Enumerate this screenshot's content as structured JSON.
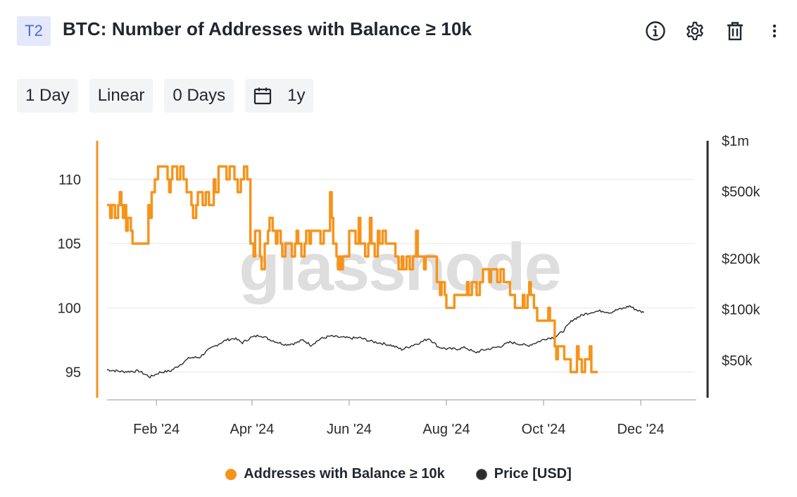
{
  "header": {
    "tag": "T2",
    "title": "BTC: Number of Addresses with Balance ≥ 10k",
    "icons": [
      "info-icon",
      "gear-icon",
      "trash-icon",
      "more-vertical-icon"
    ]
  },
  "toolbar": {
    "resolution": "1 Day",
    "scale": "Linear",
    "moving_average": "0 Days",
    "range": "1y",
    "range_icon": "calendar-icon"
  },
  "legend": [
    {
      "label": "Addresses with Balance ≥ 10k",
      "color": "#f7931a"
    },
    {
      "label": "Price [USD]",
      "color": "#2b2b2b"
    }
  ],
  "chart_data": {
    "type": "line",
    "watermark": "glassnode",
    "x_ticks": [
      {
        "label": "Feb '24",
        "day": 31
      },
      {
        "label": "Apr '24",
        "day": 91
      },
      {
        "label": "Jun '24",
        "day": 152
      },
      {
        "label": "Aug '24",
        "day": 213
      },
      {
        "label": "Oct '24",
        "day": 274
      },
      {
        "label": "Dec '24",
        "day": 335
      }
    ],
    "x_range_days": [
      0,
      369
    ],
    "left_axis": {
      "ticks": [
        "95",
        "100",
        "105",
        "110"
      ],
      "values": [
        95,
        100,
        105,
        110
      ],
      "ylim": [
        93,
        113
      ],
      "color": "#f7931a"
    },
    "right_axis": {
      "ticks": [
        "$50k",
        "$100k",
        "$200k",
        "$500k",
        "$1m"
      ],
      "values": [
        50000,
        100000,
        200000,
        500000,
        1000000
      ],
      "ylim": [
        30000,
        1000000
      ],
      "scale": "log",
      "color": "#2b2b2b"
    },
    "series": [
      {
        "name": "Addresses with Balance ≥ 10k",
        "axis": "left",
        "color": "#f7931a",
        "step": true,
        "points": [
          [
            0,
            108
          ],
          [
            2,
            107
          ],
          [
            3,
            108
          ],
          [
            5,
            107
          ],
          [
            7,
            108
          ],
          [
            8,
            109
          ],
          [
            9,
            108
          ],
          [
            10,
            107
          ],
          [
            11,
            108
          ],
          [
            12,
            106
          ],
          [
            13,
            107
          ],
          [
            14,
            107
          ],
          [
            15,
            106
          ],
          [
            16,
            105
          ],
          [
            25,
            105
          ],
          [
            26,
            108
          ],
          [
            27,
            107
          ],
          [
            28,
            109
          ],
          [
            30,
            110
          ],
          [
            31,
            110
          ],
          [
            32,
            111
          ],
          [
            38,
            110
          ],
          [
            39,
            109
          ],
          [
            40,
            110
          ],
          [
            41,
            111
          ],
          [
            44,
            110
          ],
          [
            46,
            111
          ],
          [
            48,
            110
          ],
          [
            50,
            109
          ],
          [
            53,
            108
          ],
          [
            54,
            107
          ],
          [
            56,
            108
          ],
          [
            57,
            109
          ],
          [
            60,
            108
          ],
          [
            62,
            109
          ],
          [
            64,
            108
          ],
          [
            67,
            110
          ],
          [
            68,
            109
          ],
          [
            70,
            111
          ],
          [
            75,
            110
          ],
          [
            77,
            111
          ],
          [
            80,
            110
          ],
          [
            82,
            109
          ],
          [
            84,
            110
          ],
          [
            86,
            111
          ],
          [
            88,
            110
          ],
          [
            90,
            105
          ],
          [
            92,
            104
          ],
          [
            93,
            106
          ],
          [
            95,
            106
          ],
          [
            96,
            104
          ],
          [
            97,
            103
          ],
          [
            99,
            105
          ],
          [
            101,
            106
          ],
          [
            102,
            107
          ],
          [
            104,
            106
          ],
          [
            106,
            105
          ],
          [
            107,
            106
          ],
          [
            109,
            105
          ],
          [
            110,
            104
          ],
          [
            112,
            105
          ],
          [
            115,
            105
          ],
          [
            116,
            104
          ],
          [
            118,
            105
          ],
          [
            119,
            106
          ],
          [
            120,
            105
          ],
          [
            122,
            104
          ],
          [
            124,
            105
          ],
          [
            125,
            106
          ],
          [
            127,
            105
          ],
          [
            128,
            106
          ],
          [
            132,
            106
          ],
          [
            134,
            105
          ],
          [
            136,
            106
          ],
          [
            138,
            106
          ],
          [
            140,
            109
          ],
          [
            141,
            107
          ],
          [
            142,
            105
          ],
          [
            144,
            104
          ],
          [
            145,
            103
          ],
          [
            146,
            104
          ],
          [
            147,
            103
          ],
          [
            148,
            104
          ],
          [
            150,
            104
          ],
          [
            152,
            106
          ],
          [
            155,
            106
          ],
          [
            156,
            105
          ],
          [
            158,
            107
          ],
          [
            159,
            105
          ],
          [
            161,
            105
          ],
          [
            162,
            104
          ],
          [
            164,
            105
          ],
          [
            165,
            107
          ],
          [
            166,
            105
          ],
          [
            168,
            104
          ],
          [
            170,
            106
          ],
          [
            171,
            105
          ],
          [
            173,
            106
          ],
          [
            175,
            105
          ],
          [
            180,
            105
          ],
          [
            181,
            104
          ],
          [
            183,
            103
          ],
          [
            185,
            104
          ],
          [
            186,
            103
          ],
          [
            188,
            104
          ],
          [
            190,
            103
          ],
          [
            192,
            104
          ],
          [
            194,
            106
          ],
          [
            195,
            104
          ],
          [
            198,
            104
          ],
          [
            199,
            103
          ],
          [
            200,
            104
          ],
          [
            205,
            104
          ],
          [
            207,
            102
          ],
          [
            209,
            101
          ],
          [
            210,
            102
          ],
          [
            212,
            101
          ],
          [
            213,
            100
          ],
          [
            217,
            100
          ],
          [
            218,
            101
          ],
          [
            225,
            101
          ],
          [
            226,
            102
          ],
          [
            227,
            101
          ],
          [
            229,
            102
          ],
          [
            231,
            102
          ],
          [
            232,
            101
          ],
          [
            234,
            102
          ],
          [
            236,
            103
          ],
          [
            240,
            102
          ],
          [
            241,
            103
          ],
          [
            244,
            103
          ],
          [
            245,
            102
          ],
          [
            247,
            103
          ],
          [
            249,
            102
          ],
          [
            252,
            102
          ],
          [
            253,
            101
          ],
          [
            255,
            101
          ],
          [
            256,
            100
          ],
          [
            260,
            100
          ],
          [
            261,
            101
          ],
          [
            262,
            100
          ],
          [
            264,
            101
          ],
          [
            265,
            102
          ],
          [
            266,
            101
          ],
          [
            268,
            100
          ],
          [
            270,
            99
          ],
          [
            276,
            99
          ],
          [
            277,
            100
          ],
          [
            278,
            99
          ],
          [
            280,
            99
          ],
          [
            281,
            97
          ],
          [
            282,
            96
          ],
          [
            283,
            97
          ],
          [
            286,
            97
          ],
          [
            287,
            96
          ],
          [
            290,
            96
          ],
          [
            291,
            95
          ],
          [
            294,
            95
          ],
          [
            295,
            97
          ],
          [
            296,
            96
          ],
          [
            298,
            95
          ],
          [
            300,
            96
          ],
          [
            302,
            96
          ],
          [
            303,
            97
          ],
          [
            304,
            95
          ],
          [
            307,
            95
          ]
        ]
      },
      {
        "name": "Price [USD]",
        "axis": "right",
        "color": "#2b2b2b",
        "points": [
          [
            0,
            44000
          ],
          [
            10,
            42800
          ],
          [
            20,
            43200
          ],
          [
            27,
            39800
          ],
          [
            33,
            42400
          ],
          [
            40,
            43300
          ],
          [
            45,
            46500
          ],
          [
            52,
            51800
          ],
          [
            58,
            52000
          ],
          [
            63,
            57000
          ],
          [
            70,
            62500
          ],
          [
            75,
            66000
          ],
          [
            80,
            67500
          ],
          [
            85,
            63500
          ],
          [
            90,
            68000
          ],
          [
            96,
            70500
          ],
          [
            102,
            66500
          ],
          [
            107,
            64000
          ],
          [
            112,
            62000
          ],
          [
            118,
            63000
          ],
          [
            123,
            66000
          ],
          [
            128,
            61500
          ],
          [
            134,
            67000
          ],
          [
            140,
            69500
          ],
          [
            147,
            68300
          ],
          [
            153,
            67600
          ],
          [
            159,
            67900
          ],
          [
            165,
            65000
          ],
          [
            172,
            63200
          ],
          [
            178,
            61500
          ],
          [
            185,
            58000
          ],
          [
            191,
            61000
          ],
          [
            197,
            64000
          ],
          [
            202,
            67500
          ],
          [
            208,
            60000
          ],
          [
            213,
            58500
          ],
          [
            219,
            58300
          ],
          [
            225,
            59500
          ],
          [
            231,
            55500
          ],
          [
            236,
            57500
          ],
          [
            242,
            59000
          ],
          [
            247,
            60500
          ],
          [
            253,
            64000
          ],
          [
            259,
            62500
          ],
          [
            264,
            61000
          ],
          [
            270,
            64000
          ],
          [
            276,
            67500
          ],
          [
            281,
            68500
          ],
          [
            286,
            74000
          ],
          [
            289,
            80000
          ],
          [
            292,
            86500
          ],
          [
            296,
            90500
          ],
          [
            300,
            94000
          ],
          [
            305,
            97000
          ],
          [
            311,
            98200
          ],
          [
            316,
            96000
          ],
          [
            320,
            99500
          ],
          [
            324,
            101500
          ],
          [
            328,
            105000
          ],
          [
            331,
            101000
          ],
          [
            334,
            98000
          ],
          [
            337,
            96000
          ]
        ]
      }
    ],
    "grid": true,
    "legend_position": "bottom-center"
  }
}
